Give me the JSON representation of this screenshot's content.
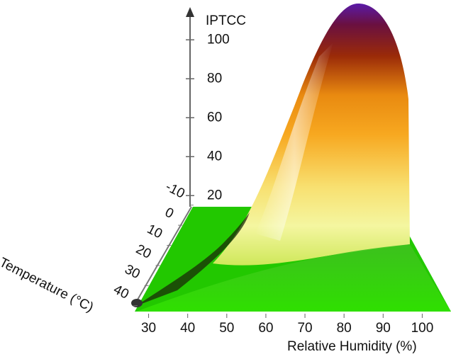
{
  "chart_data": {
    "type": "surface",
    "z_label": "IPTCC",
    "x_label": "Relative Humidity (%)",
    "y_label": "Temperature (°C)",
    "xlim": [
      25,
      107
    ],
    "xticks": [
      30,
      40,
      50,
      60,
      70,
      80,
      90,
      100
    ],
    "ylim": [
      -12,
      45
    ],
    "yticks": [
      -10,
      0,
      10,
      20,
      30,
      40
    ],
    "zlim": [
      15,
      115
    ],
    "zticks": [
      20,
      40,
      60,
      80,
      100
    ]
  }
}
